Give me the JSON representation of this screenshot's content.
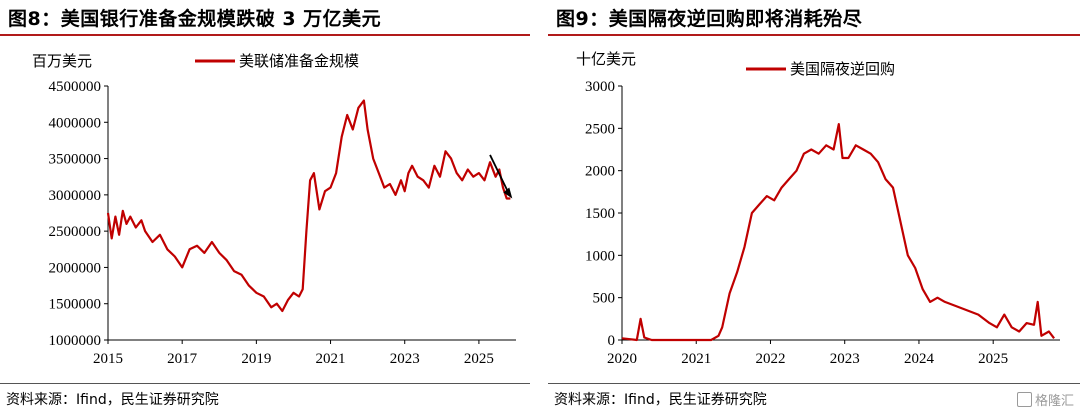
{
  "panels": [
    {
      "title": "图8：美国银行准备金规模跌破 3 万亿美元",
      "source": "资料来源：Ifind，民生证券研究院"
    },
    {
      "title": "图9：美国隔夜逆回购即将消耗殆尽",
      "source": "资料来源：Ifind，民生证券研究院"
    }
  ],
  "watermark": "格隆汇",
  "colors": {
    "series": "#c00000",
    "title_rule": "#b11a1a",
    "arrow": "#000000"
  },
  "chart_data": [
    {
      "type": "line",
      "unit_label": "百万美元",
      "ylim": [
        1000000,
        4500000
      ],
      "yticks": [
        1000000,
        1500000,
        2000000,
        2500000,
        3000000,
        3500000,
        4000000,
        4500000
      ],
      "ytick_labels": [
        "1000000",
        "1500000",
        "2000000",
        "2500000",
        "3000000",
        "3500000",
        "4000000",
        "4500000"
      ],
      "xlim": [
        2015,
        2026
      ],
      "xticks": [
        2015,
        2017,
        2019,
        2021,
        2023,
        2025
      ],
      "xtick_labels": [
        "2015",
        "2017",
        "2019",
        "2021",
        "2023",
        "2025"
      ],
      "grid": false,
      "legend_position": "top-center",
      "annotation": "downward-arrow at end of series",
      "series": [
        {
          "name": "美联储准备金规模",
          "x": [
            2015.0,
            2015.1,
            2015.2,
            2015.3,
            2015.4,
            2015.5,
            2015.6,
            2015.75,
            2015.9,
            2016.0,
            2016.2,
            2016.4,
            2016.6,
            2016.8,
            2017.0,
            2017.2,
            2017.4,
            2017.6,
            2017.8,
            2018.0,
            2018.2,
            2018.4,
            2018.6,
            2018.8,
            2019.0,
            2019.2,
            2019.4,
            2019.55,
            2019.7,
            2019.85,
            2020.0,
            2020.15,
            2020.25,
            2020.35,
            2020.45,
            2020.55,
            2020.7,
            2020.85,
            2021.0,
            2021.15,
            2021.3,
            2021.45,
            2021.6,
            2021.75,
            2021.9,
            2022.0,
            2022.15,
            2022.3,
            2022.45,
            2022.6,
            2022.75,
            2022.9,
            2023.0,
            2023.1,
            2023.2,
            2023.35,
            2023.5,
            2023.65,
            2023.8,
            2023.95,
            2024.1,
            2024.25,
            2024.4,
            2024.55,
            2024.7,
            2024.85,
            2025.0,
            2025.15,
            2025.3,
            2025.45,
            2025.55,
            2025.65,
            2025.75,
            2025.85
          ],
          "y": [
            2750000,
            2400000,
            2700000,
            2450000,
            2780000,
            2600000,
            2700000,
            2550000,
            2650000,
            2500000,
            2350000,
            2450000,
            2250000,
            2150000,
            2000000,
            2250000,
            2300000,
            2200000,
            2350000,
            2200000,
            2100000,
            1950000,
            1900000,
            1750000,
            1650000,
            1600000,
            1450000,
            1500000,
            1400000,
            1550000,
            1650000,
            1600000,
            1700000,
            2500000,
            3200000,
            3300000,
            2800000,
            3050000,
            3100000,
            3300000,
            3800000,
            4100000,
            3900000,
            4200000,
            4300000,
            3900000,
            3500000,
            3300000,
            3100000,
            3150000,
            3000000,
            3200000,
            3050000,
            3300000,
            3400000,
            3250000,
            3200000,
            3100000,
            3400000,
            3250000,
            3600000,
            3500000,
            3300000,
            3200000,
            3350000,
            3250000,
            3300000,
            3200000,
            3450000,
            3250000,
            3350000,
            3100000,
            2950000,
            2950000
          ]
        }
      ]
    },
    {
      "type": "line",
      "unit_label": "十亿美元",
      "ylim": [
        0,
        3000
      ],
      "yticks": [
        0,
        500,
        1000,
        1500,
        2000,
        2500,
        3000
      ],
      "ytick_labels": [
        "0",
        "500",
        "1000",
        "1500",
        "2000",
        "2500",
        "3000"
      ],
      "xlim": [
        2020,
        2025.9
      ],
      "xticks": [
        2020,
        2021,
        2022,
        2023,
        2024,
        2025
      ],
      "xtick_labels": [
        "2020",
        "2021",
        "2022",
        "2023",
        "2024",
        "2025"
      ],
      "grid": false,
      "legend_position": "top-center",
      "series": [
        {
          "name": "美国隔夜逆回购",
          "x": [
            2020.0,
            2020.2,
            2020.25,
            2020.3,
            2020.4,
            2020.6,
            2020.8,
            2021.0,
            2021.1,
            2021.2,
            2021.3,
            2021.35,
            2021.45,
            2021.55,
            2021.65,
            2021.75,
            2021.85,
            2021.95,
            2022.05,
            2022.15,
            2022.25,
            2022.35,
            2022.45,
            2022.55,
            2022.65,
            2022.75,
            2022.85,
            2022.92,
            2022.97,
            2023.05,
            2023.15,
            2023.25,
            2023.35,
            2023.45,
            2023.55,
            2023.65,
            2023.75,
            2023.85,
            2023.95,
            2024.05,
            2024.15,
            2024.25,
            2024.35,
            2024.5,
            2024.65,
            2024.8,
            2024.95,
            2025.05,
            2025.15,
            2025.25,
            2025.35,
            2025.45,
            2025.55,
            2025.6,
            2025.65,
            2025.75,
            2025.82
          ],
          "y": [
            20,
            0,
            250,
            30,
            0,
            0,
            0,
            0,
            0,
            0,
            50,
            150,
            550,
            800,
            1100,
            1500,
            1600,
            1700,
            1650,
            1800,
            1900,
            2000,
            2200,
            2250,
            2200,
            2300,
            2250,
            2550,
            2150,
            2150,
            2300,
            2250,
            2200,
            2100,
            1900,
            1800,
            1400,
            1000,
            850,
            600,
            450,
            500,
            450,
            400,
            350,
            300,
            200,
            150,
            300,
            150,
            100,
            200,
            180,
            450,
            50,
            100,
            20
          ]
        }
      ]
    }
  ]
}
